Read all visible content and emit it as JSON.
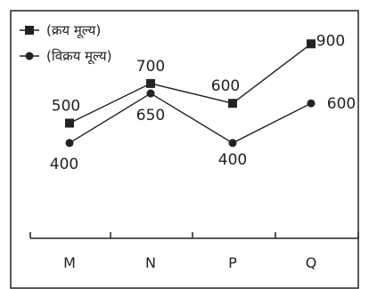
{
  "chart_data": {
    "type": "line",
    "categories": [
      "M",
      "N",
      "P",
      "Q"
    ],
    "series": [
      {
        "name": "(क्रय मूल्य)",
        "marker": "square",
        "values": [
          500,
          700,
          600,
          900
        ]
      },
      {
        "name": "(विक्रय मूल्य)",
        "marker": "circle",
        "values": [
          400,
          650,
          400,
          600
        ]
      }
    ],
    "legend_position": "top-left",
    "grid": false,
    "color": "#222222"
  }
}
